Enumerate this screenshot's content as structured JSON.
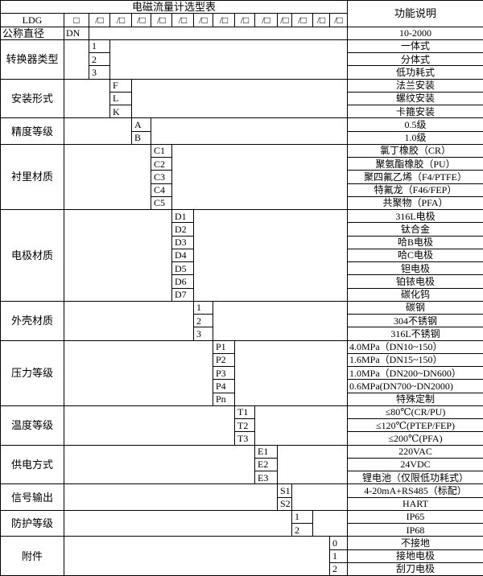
{
  "title": "电磁流量计选型表",
  "function_header": "功能说明",
  "model": {
    "prefix": "LDG",
    "first_box": "□",
    "slot_boxes": [
      "/□",
      "/□",
      "/□",
      "/□",
      "/□",
      "/□",
      "/□",
      "/□",
      "/□",
      "/□",
      "/□",
      "/□",
      "/□"
    ]
  },
  "nominal_diameter": {
    "label": "公称直径",
    "code": "DN",
    "description": "10-2000"
  },
  "groups": [
    {
      "label": "转换器类型",
      "codes": [
        "1",
        "2",
        "3"
      ],
      "descriptions": [
        "一体式",
        "分体式",
        "低功耗式"
      ]
    },
    {
      "label": "安装形式",
      "codes": [
        "F",
        "L",
        "K"
      ],
      "descriptions": [
        "法兰安装",
        "螺纹安装",
        "卡箍安装"
      ]
    },
    {
      "label": "精度等级",
      "codes": [
        "A",
        "B"
      ],
      "descriptions": [
        "0.5级",
        "1.0级"
      ]
    },
    {
      "label": "衬里材质",
      "codes": [
        "C1",
        "C2",
        "C3",
        "C4",
        "C5"
      ],
      "descriptions": [
        "氯丁橡胶（CR）",
        "聚氨酯橡胶（PU）",
        "聚四氟乙烯（F4/PTFE）",
        "特氟龙（F46/FEP）",
        "共聚物（PFA）"
      ]
    },
    {
      "label": "电极材质",
      "codes": [
        "D1",
        "D2",
        "D3",
        "D4",
        "D5",
        "D6",
        "D7"
      ],
      "descriptions": [
        "316L电极",
        "钛合金",
        "哈B电极",
        "哈C电极",
        "钽电极",
        "铂铱电极",
        "碳化钨"
      ]
    },
    {
      "label": "外壳材质",
      "codes": [
        "1",
        "2",
        "3"
      ],
      "descriptions": [
        "碳钢",
        "304不锈钢",
        "316L不锈钢"
      ]
    },
    {
      "label": "压力等级",
      "codes": [
        "P1",
        "P2",
        "P3",
        "P4",
        "Pn"
      ],
      "descriptions": [
        "4.0MPa（DN10~150）",
        "1.6MPa（DN15~150）",
        "1.0MPa（DN200~DN600）",
        "0.6MPa(DN700~DN2000)",
        "特殊定制"
      ],
      "left_aligned": [
        true,
        true,
        true,
        true,
        false
      ]
    },
    {
      "label": "温度等级",
      "codes": [
        "T1",
        "T2",
        "T3"
      ],
      "descriptions": [
        "≤80℃(CR/PU)",
        "≤120℃(PTEP/FEP)",
        "≤200℃(PFA)"
      ]
    },
    {
      "label": "供电方式",
      "codes": [
        "E1",
        "E2",
        "E3"
      ],
      "descriptions": [
        "220VAC",
        "24VDC",
        "锂电池（仅限低功耗式）"
      ]
    },
    {
      "label": "信号输出",
      "codes": [
        "S1",
        "S2"
      ],
      "descriptions": [
        "4-20mA+RS485（标配）",
        "HART"
      ]
    },
    {
      "label": "防护等级",
      "codes": [
        "1",
        "2"
      ],
      "descriptions": [
        "IP65",
        "IP68"
      ]
    },
    {
      "label": "附件",
      "codes": [
        "0",
        "1",
        "2"
      ],
      "descriptions": [
        "不接地",
        "接地电极",
        "刮刀电极"
      ]
    }
  ]
}
